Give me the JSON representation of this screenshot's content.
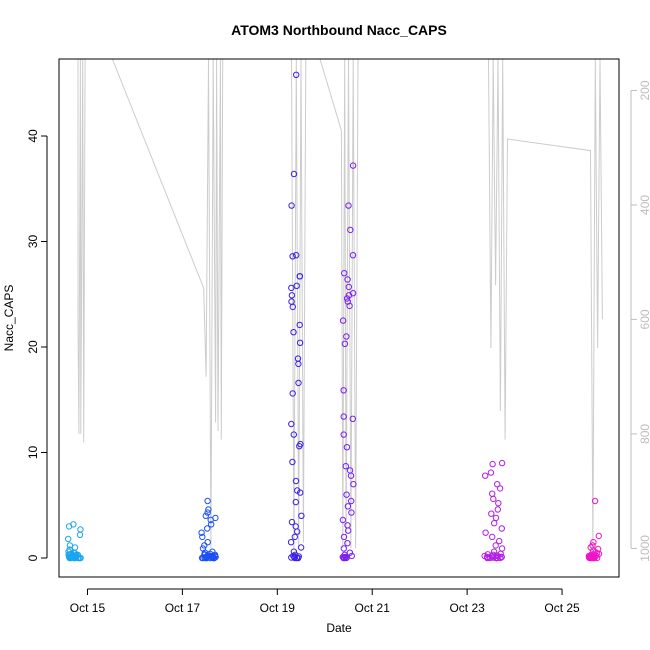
{
  "chart_data": {
    "type": "scatter",
    "title": "ATOM3 Northbound Nacc_CAPS",
    "xlabel": "Date",
    "ylabel": "Nacc_CAPS",
    "x_ticks": [
      "Oct 15",
      "Oct 17",
      "Oct 19",
      "Oct 21",
      "Oct 23",
      "Oct 25"
    ],
    "x_tick_days": [
      15,
      17,
      19,
      21,
      23,
      25
    ],
    "xlim_days": [
      14.4,
      26.2
    ],
    "y_ticks": [
      0,
      10,
      20,
      30,
      40
    ],
    "ylim": [
      -1.8,
      47.3
    ],
    "right_axis": {
      "color": "#bdbdbd",
      "reversed": true,
      "ticks": [
        200,
        400,
        600,
        800,
        1000
      ],
      "lim": [
        1050,
        145
      ]
    },
    "clusters": [
      {
        "day": 14.72,
        "width": 0.28,
        "color": "#1aa5ef",
        "values": [
          0.0,
          0.05,
          0.1,
          0.0,
          0.2,
          0.15,
          0.3,
          0.0,
          0.1,
          0.05,
          0.4,
          0.0,
          0.2,
          0.6,
          0.0,
          0.1,
          0.3,
          0.8,
          1.0,
          0.5,
          1.2,
          1.8,
          2.2,
          2.7,
          3.0,
          3.2,
          0.0,
          0.15,
          0.25,
          0.0,
          0.1,
          0.05,
          0.35,
          0.0,
          0.2,
          0.0,
          0.45,
          0.1,
          0.0,
          0.3
        ]
      },
      {
        "day": 17.55,
        "width": 0.32,
        "color": "#1b51f2",
        "values": [
          0.0,
          0.1,
          0.0,
          0.2,
          0.3,
          0.0,
          0.15,
          0.05,
          0.4,
          0.0,
          0.6,
          0.2,
          0.9,
          1.2,
          1.5,
          2.0,
          2.4,
          2.8,
          3.2,
          3.6,
          3.8,
          4.0,
          4.3,
          4.6,
          5.4,
          0.0,
          0.1,
          0.25,
          0.0,
          0.35,
          0.05,
          0.0,
          0.5,
          0.2,
          0.0,
          0.1,
          0.3,
          0.0,
          0.15,
          0.0
        ]
      },
      {
        "day": 19.4,
        "width": 0.22,
        "color": "#3a1fe6",
        "values": [
          0.0,
          0.05,
          0.1,
          0.0,
          0.2,
          0.3,
          0.0,
          0.15,
          0.6,
          1.0,
          1.5,
          2.0,
          2.5,
          3.0,
          3.4,
          4.0,
          5.3,
          6.2,
          6.4,
          7.3,
          9.1,
          10.6,
          10.8,
          11.7,
          12.7,
          15.6,
          16.6,
          18.4,
          18.9,
          20.4,
          21.4,
          22.1,
          23.8,
          24.3,
          24.9,
          25.6,
          25.8,
          26.7,
          26.7,
          28.6,
          28.7,
          33.4,
          36.4,
          45.8
        ]
      },
      {
        "day": 20.5,
        "width": 0.24,
        "color": "#7a1ef0",
        "values": [
          0.0,
          0.05,
          0.1,
          0.0,
          0.2,
          0.0,
          0.3,
          0.1,
          0.5,
          0.9,
          1.4,
          2.0,
          2.6,
          3.1,
          3.6,
          4.3,
          4.9,
          5.4,
          6.0,
          7.0,
          7.8,
          8.3,
          8.7,
          10.5,
          11.7,
          13.2,
          13.4,
          15.9,
          20.3,
          21.0,
          22.5,
          23.9,
          24.3,
          24.6,
          24.9,
          25.1,
          25.7,
          26.4,
          27.0,
          28.7,
          31.1,
          33.4,
          37.2
        ]
      },
      {
        "day": 23.55,
        "width": 0.38,
        "color": "#b31de6",
        "values": [
          0.0,
          0.05,
          0.1,
          0.0,
          0.2,
          0.3,
          0.0,
          0.15,
          0.4,
          0.6,
          0.9,
          1.2,
          1.6,
          2.0,
          2.4,
          2.8,
          3.3,
          3.8,
          4.2,
          4.6,
          5.2,
          5.6,
          6.1,
          6.6,
          7.0,
          7.8,
          8.1,
          8.9,
          9.0,
          0.0,
          0.1,
          0.25,
          0.0,
          0.35,
          0.05,
          0.0,
          0.2,
          0.1
        ]
      },
      {
        "day": 25.68,
        "width": 0.24,
        "color": "#ef14c8",
        "values": [
          0.0,
          0.05,
          0.1,
          0.0,
          0.2,
          0.3,
          0.0,
          0.15,
          0.4,
          0.55,
          0.7,
          0.85,
          1.0,
          1.2,
          1.5,
          2.1,
          5.4,
          0.0,
          0.1,
          0.25,
          0.0,
          0.35,
          0.05,
          0.0,
          0.2,
          0.1,
          0.45,
          0.0
        ]
      }
    ],
    "depth_series": {
      "color": "#cccccc",
      "points": [
        [
          14.8,
          145
        ],
        [
          14.8,
          595
        ],
        [
          14.82,
          800
        ],
        [
          14.85,
          145
        ],
        [
          14.86,
          800
        ],
        [
          14.9,
          145
        ],
        [
          14.92,
          815
        ],
        [
          14.95,
          145
        ],
        [
          15.5,
          140
        ],
        [
          17.45,
          545
        ],
        [
          17.5,
          700
        ],
        [
          17.55,
          145
        ],
        [
          17.6,
          1000
        ],
        [
          17.65,
          145
        ],
        [
          17.7,
          780
        ],
        [
          17.72,
          145
        ],
        [
          17.75,
          795
        ],
        [
          17.8,
          145
        ],
        [
          17.82,
          810
        ],
        [
          17.85,
          145
        ],
        [
          19.3,
          145
        ],
        [
          19.35,
          1000
        ],
        [
          19.4,
          145
        ],
        [
          19.45,
          1000
        ],
        [
          19.5,
          145
        ],
        [
          19.55,
          990
        ],
        [
          19.6,
          145
        ],
        [
          19.9,
          145
        ],
        [
          20.35,
          270
        ],
        [
          20.38,
          1000
        ],
        [
          20.42,
          145
        ],
        [
          20.45,
          1000
        ],
        [
          20.5,
          145
        ],
        [
          20.55,
          1000
        ],
        [
          20.6,
          145
        ],
        [
          20.65,
          1000
        ],
        [
          20.7,
          145
        ],
        [
          23.45,
          145
        ],
        [
          23.5,
          650
        ],
        [
          23.55,
          145
        ],
        [
          23.6,
          540
        ],
        [
          23.65,
          145
        ],
        [
          23.7,
          760
        ],
        [
          23.75,
          145
        ],
        [
          23.8,
          810
        ],
        [
          23.85,
          285
        ],
        [
          25.6,
          305
        ],
        [
          25.65,
          1000
        ],
        [
          25.7,
          145
        ],
        [
          25.75,
          650
        ],
        [
          25.8,
          145
        ],
        [
          25.85,
          600
        ]
      ]
    }
  }
}
